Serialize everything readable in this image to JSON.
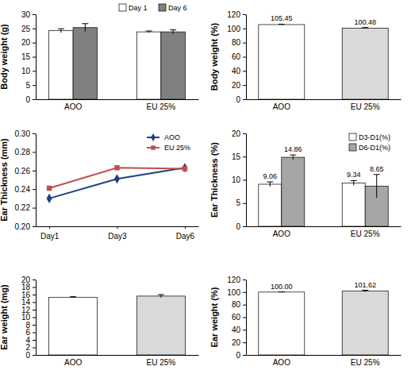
{
  "chart_data": [
    {
      "type": "bar",
      "y_label": "Body weight (g)",
      "categories": [
        "AOO",
        "EU 25%"
      ],
      "series": [
        {
          "name": "Day 1",
          "color": "#ffffff",
          "values": [
            24.2,
            23.8
          ],
          "errors": [
            0.7,
            0.3
          ]
        },
        {
          "name": "Day 6",
          "color": "#808080",
          "values": [
            25.3,
            23.8
          ],
          "errors": [
            1.4,
            0.7
          ]
        }
      ],
      "ylim": [
        0,
        30
      ],
      "yticks": [
        0,
        5,
        10,
        15,
        20,
        25,
        30
      ],
      "legend": "top-right"
    },
    {
      "type": "bar",
      "y_label": "Body weight (%)",
      "categories": [
        "AOO",
        "EU 25%"
      ],
      "values": [
        105.45,
        100.48
      ],
      "errors": [
        0.6,
        0.8
      ],
      "colors": [
        "#ffffff",
        "#d9d9d9"
      ],
      "ylim": [
        0,
        120
      ],
      "yticks": [
        0,
        20,
        40,
        60,
        80,
        100,
        120
      ],
      "data_labels": true
    },
    {
      "type": "line",
      "y_label": "Ear Thickness (mm)",
      "categories": [
        "Day1",
        "Day3",
        "Day6"
      ],
      "series": [
        {
          "name": "AOO",
          "color": "#1f3f7f",
          "marker": "diamond",
          "values": [
            0.23,
            0.251,
            0.263
          ]
        },
        {
          "name": "EU 25%",
          "color": "#c0504d",
          "marker": "square",
          "values": [
            0.241,
            0.263,
            0.262
          ]
        }
      ],
      "ylim": [
        0.2,
        0.3
      ],
      "yticks": [
        {
          "value": 0.2,
          "label": "0.20"
        },
        {
          "value": 0.22,
          "label": "0.22"
        },
        {
          "value": 0.24,
          "label": "0.24"
        },
        {
          "value": 0.26,
          "label": "0.26"
        },
        {
          "value": 0.28,
          "label": "0.28"
        },
        {
          "value": 0.3,
          "label": "0.30"
        }
      ],
      "legend": "top-right"
    },
    {
      "type": "bar",
      "y_label": "Ear Thickness (%)",
      "categories": [
        "AOO",
        "EU 25%"
      ],
      "series": [
        {
          "name": "D3-D1(%)",
          "color": "#ffffff",
          "values": [
            9.06,
            9.34
          ],
          "errors": [
            0.5,
            0.5
          ]
        },
        {
          "name": "D6-D1(%)",
          "color": "#a6a6a6",
          "values": [
            14.86,
            8.65
          ],
          "errors": [
            0.5,
            2.5
          ]
        }
      ],
      "ylim": [
        0,
        20
      ],
      "yticks": [
        0,
        5,
        10,
        15,
        20
      ],
      "legend": "top-right",
      "data_labels": true
    },
    {
      "type": "bar",
      "y_label": "Ear weight (mg)",
      "categories": [
        "AOO",
        "EU 25%"
      ],
      "values": [
        15.3,
        15.6
      ],
      "errors": [
        0.15,
        0.4
      ],
      "colors": [
        "#ffffff",
        "#d9d9d9"
      ],
      "ylim": [
        0,
        20
      ],
      "yticks": [
        0,
        2,
        4,
        6,
        8,
        10,
        12,
        14,
        16,
        18,
        20
      ]
    },
    {
      "type": "bar",
      "y_label": "Ear weight (%)",
      "categories": [
        "AOO",
        "EU 25%"
      ],
      "values": [
        100,
        101.62
      ],
      "value_labels": [
        "100.00",
        "101.62"
      ],
      "errors": [
        0.3,
        1.2
      ],
      "colors": [
        "#ffffff",
        "#d9d9d9"
      ],
      "ylim": [
        0,
        120
      ],
      "yticks": [
        0,
        20,
        40,
        60,
        80,
        100,
        120
      ],
      "data_labels": true
    }
  ]
}
